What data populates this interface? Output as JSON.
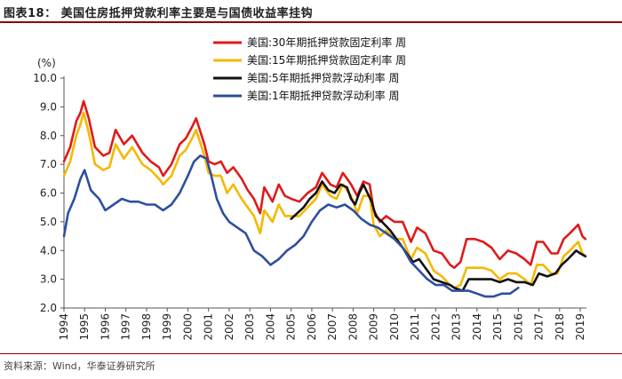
{
  "figure_title": "图表18： 美国住房抵押贷款利率主要是与国债收益率挂钩",
  "source": "资料来源：Wind，华泰证券研究所",
  "chart_data": {
    "type": "line",
    "unit": "(%)",
    "ylim": [
      2.0,
      10.0
    ],
    "yticks": [
      "10.0",
      "9.0",
      "8.0",
      "7.0",
      "6.0",
      "5.0",
      "4.0",
      "3.0",
      "2.0"
    ],
    "xlim": [
      1994.0,
      2019.3
    ],
    "xticks": [
      "1994",
      "1995",
      "1996",
      "1997",
      "1998",
      "1999",
      "2000",
      "2001",
      "2002",
      "2003",
      "2004",
      "2005",
      "2006",
      "2007",
      "2008",
      "2009",
      "2010",
      "2011",
      "2012",
      "2013",
      "2014",
      "2015",
      "2016",
      "2017",
      "2018",
      "2019"
    ],
    "legend_position": "top-right",
    "series": [
      {
        "name": "美国:30年期抵押贷款固定利率 周",
        "color": "#e01a1a",
        "x": [
          1994.0,
          1994.3,
          1994.6,
          1994.8,
          1994.95,
          1995.2,
          1995.5,
          1995.9,
          1996.2,
          1996.5,
          1996.9,
          1997.3,
          1997.8,
          1998.2,
          1998.6,
          1998.8,
          1999.2,
          1999.6,
          1999.9,
          2000.2,
          2000.4,
          2000.8,
          2001.0,
          2001.3,
          2001.6,
          2001.9,
          2002.2,
          2002.6,
          2002.9,
          2003.2,
          2003.5,
          2003.7,
          2004.1,
          2004.4,
          2004.7,
          2005.0,
          2005.4,
          2005.8,
          2006.2,
          2006.5,
          2006.9,
          2007.2,
          2007.5,
          2007.9,
          2008.2,
          2008.5,
          2008.8,
          2009.0,
          2009.3,
          2009.6,
          2010.0,
          2010.4,
          2010.8,
          2011.1,
          2011.5,
          2011.9,
          2012.3,
          2012.7,
          2012.9,
          2013.2,
          2013.5,
          2013.9,
          2014.3,
          2014.7,
          2015.1,
          2015.5,
          2015.9,
          2016.3,
          2016.6,
          2016.9,
          2017.2,
          2017.6,
          2017.9,
          2018.2,
          2018.5,
          2018.9,
          2019.1,
          2019.25
        ],
        "values": [
          7.1,
          7.6,
          8.5,
          8.8,
          9.2,
          8.6,
          7.6,
          7.3,
          7.4,
          8.2,
          7.7,
          8.0,
          7.4,
          7.1,
          6.9,
          6.6,
          7.0,
          7.7,
          7.9,
          8.3,
          8.6,
          7.7,
          7.1,
          7.0,
          7.1,
          6.7,
          6.9,
          6.5,
          6.1,
          5.8,
          5.3,
          6.2,
          5.7,
          6.3,
          5.9,
          5.8,
          5.7,
          6.0,
          6.2,
          6.7,
          6.3,
          6.2,
          6.7,
          6.3,
          5.9,
          6.4,
          6.3,
          5.4,
          5.0,
          5.2,
          5.0,
          5.0,
          4.3,
          4.8,
          4.6,
          4.0,
          3.9,
          3.5,
          3.4,
          3.6,
          4.4,
          4.4,
          4.3,
          4.1,
          3.7,
          4.0,
          3.9,
          3.7,
          3.5,
          4.3,
          4.3,
          3.9,
          3.9,
          4.4,
          4.6,
          4.9,
          4.5,
          4.4
        ]
      },
      {
        "name": "美国:15年期抵押贷款固定利率 周",
        "color": "#f5b800",
        "x": [
          1994.0,
          1994.3,
          1994.6,
          1994.8,
          1994.95,
          1995.2,
          1995.5,
          1995.9,
          1996.2,
          1996.5,
          1996.9,
          1997.3,
          1997.8,
          1998.2,
          1998.6,
          1998.8,
          1999.2,
          1999.6,
          1999.9,
          2000.2,
          2000.4,
          2000.8,
          2001.0,
          2001.3,
          2001.6,
          2001.9,
          2002.2,
          2002.6,
          2002.9,
          2003.2,
          2003.5,
          2003.7,
          2004.1,
          2004.4,
          2004.7,
          2005.0,
          2005.4,
          2005.8,
          2006.2,
          2006.5,
          2006.9,
          2007.2,
          2007.5,
          2007.9,
          2008.2,
          2008.5,
          2008.8,
          2009.0,
          2009.3,
          2009.6,
          2010.0,
          2010.4,
          2010.8,
          2011.1,
          2011.5,
          2011.9,
          2012.3,
          2012.7,
          2012.9,
          2013.2,
          2013.5,
          2013.9,
          2014.3,
          2014.7,
          2015.1,
          2015.5,
          2015.9,
          2016.3,
          2016.6,
          2016.9,
          2017.2,
          2017.6,
          2017.9,
          2018.2,
          2018.5,
          2018.9,
          2019.1,
          2019.25
        ],
        "values": [
          6.6,
          7.1,
          8.0,
          8.4,
          8.8,
          8.1,
          7.0,
          6.8,
          6.9,
          7.7,
          7.2,
          7.6,
          7.0,
          6.8,
          6.5,
          6.3,
          6.6,
          7.3,
          7.5,
          7.9,
          8.2,
          7.3,
          6.7,
          6.6,
          6.6,
          6.0,
          6.3,
          5.8,
          5.5,
          5.2,
          4.6,
          5.4,
          5.0,
          5.6,
          5.2,
          5.2,
          5.2,
          5.5,
          5.8,
          6.3,
          5.9,
          5.8,
          6.3,
          5.9,
          5.3,
          5.9,
          5.9,
          4.9,
          4.5,
          4.7,
          4.4,
          4.4,
          3.7,
          4.1,
          3.9,
          3.3,
          3.1,
          2.8,
          2.7,
          2.8,
          3.4,
          3.4,
          3.4,
          3.3,
          3.0,
          3.2,
          3.2,
          3.0,
          2.8,
          3.5,
          3.5,
          3.2,
          3.2,
          3.8,
          4.0,
          4.3,
          3.9,
          3.8
        ]
      },
      {
        "name": "美国:5年期抵押贷款浮动利率 周",
        "color": "#111111",
        "x": [
          2005.0,
          2005.3,
          2005.6,
          2005.9,
          2006.2,
          2006.5,
          2006.8,
          2007.1,
          2007.4,
          2007.7,
          2007.9,
          2008.1,
          2008.3,
          2008.5,
          2008.7,
          2008.9,
          2009.1,
          2009.4,
          2009.8,
          2010.2,
          2010.6,
          2010.9,
          2011.2,
          2011.6,
          2011.9,
          2012.3,
          2012.7,
          2012.9,
          2013.3,
          2013.6,
          2013.9,
          2014.3,
          2014.7,
          2015.1,
          2015.5,
          2015.9,
          2016.3,
          2016.7,
          2017.0,
          2017.4,
          2017.8,
          2018.1,
          2018.4,
          2018.8,
          2019.0,
          2019.25
        ],
        "values": [
          5.1,
          5.3,
          5.5,
          5.8,
          6.0,
          6.4,
          6.1,
          6.0,
          6.3,
          6.2,
          5.8,
          5.6,
          6.0,
          6.3,
          6.0,
          5.7,
          5.2,
          5.0,
          4.7,
          4.3,
          3.9,
          3.6,
          3.7,
          3.3,
          3.0,
          2.9,
          2.8,
          2.7,
          2.6,
          3.0,
          3.0,
          3.0,
          3.0,
          2.9,
          3.0,
          2.9,
          2.9,
          2.8,
          3.2,
          3.1,
          3.2,
          3.5,
          3.7,
          4.0,
          3.9,
          3.8
        ]
      },
      {
        "name": "美国:1年期抵押贷款浮动利率 周",
        "color": "#2e4f9e",
        "x": [
          1994.0,
          1994.2,
          1994.5,
          1994.8,
          1995.0,
          1995.3,
          1995.7,
          1996.0,
          1996.4,
          1996.8,
          1997.2,
          1997.6,
          1998.0,
          1998.4,
          1998.8,
          1999.2,
          1999.6,
          2000.0,
          2000.3,
          2000.6,
          2000.9,
          2001.1,
          2001.4,
          2001.7,
          2002.0,
          2002.4,
          2002.8,
          2003.2,
          2003.6,
          2004.0,
          2004.4,
          2004.8,
          2005.2,
          2005.6,
          2006.0,
          2006.4,
          2006.8,
          2007.2,
          2007.6,
          2008.0,
          2008.4,
          2008.8,
          2009.2,
          2009.6,
          2010.0,
          2010.4,
          2010.8,
          2011.2,
          2011.6,
          2012.0,
          2012.4,
          2012.8,
          2013.2,
          2013.6,
          2014.0,
          2014.4,
          2014.8,
          2015.2,
          2015.6,
          2016.0
        ],
        "values": [
          4.5,
          5.3,
          5.8,
          6.5,
          6.8,
          6.1,
          5.8,
          5.4,
          5.6,
          5.8,
          5.7,
          5.7,
          5.6,
          5.6,
          5.4,
          5.6,
          6.0,
          6.6,
          7.1,
          7.3,
          7.2,
          6.7,
          5.8,
          5.3,
          5.0,
          4.8,
          4.6,
          4.0,
          3.8,
          3.5,
          3.7,
          4.0,
          4.2,
          4.5,
          5.0,
          5.4,
          5.6,
          5.5,
          5.6,
          5.4,
          5.1,
          4.9,
          4.8,
          4.6,
          4.4,
          4.1,
          3.6,
          3.3,
          3.0,
          2.8,
          2.8,
          2.6,
          2.6,
          2.6,
          2.5,
          2.4,
          2.4,
          2.5,
          2.5,
          2.7
        ]
      }
    ]
  }
}
